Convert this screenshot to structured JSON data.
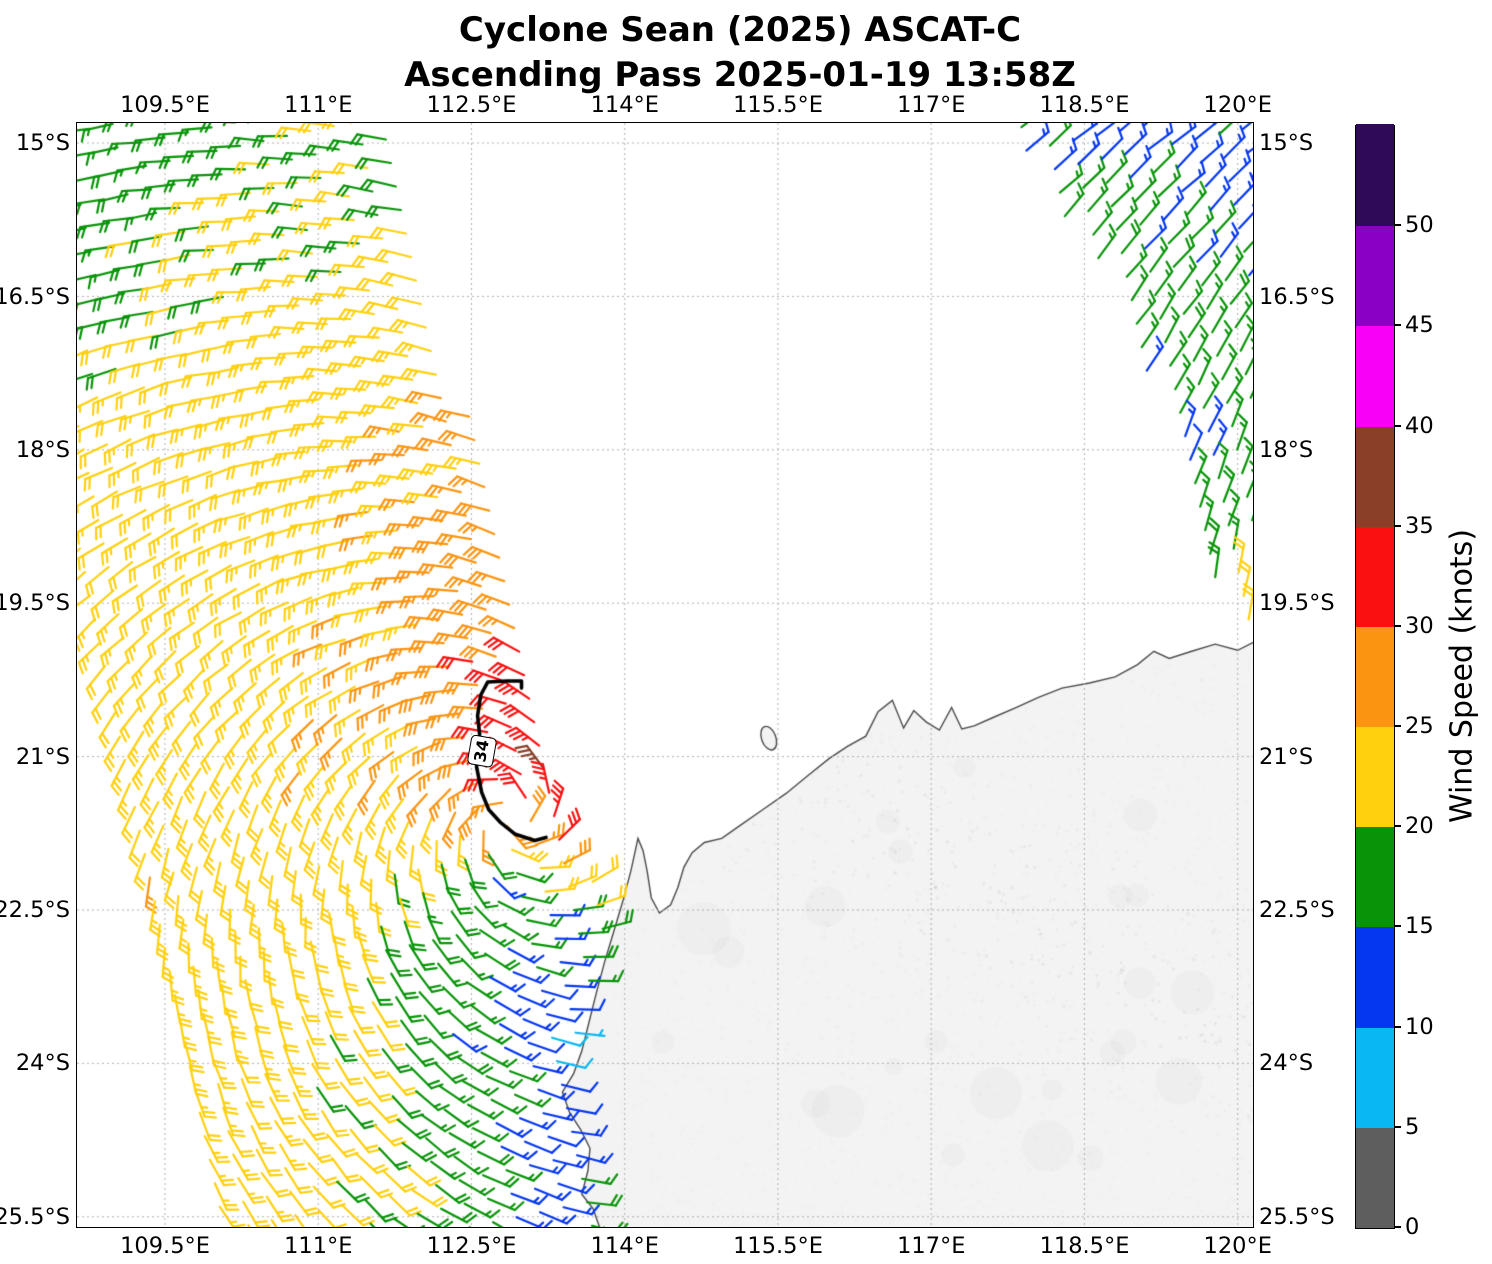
{
  "title": {
    "line1": "Cyclone Sean (2025) ASCAT-C",
    "line2": "Ascending Pass 2025-01-19 13:58Z"
  },
  "axes": {
    "lon_tick_labels": [
      "109.5°E",
      "111°E",
      "112.5°E",
      "114°E",
      "115.5°E",
      "117°E",
      "118.5°E",
      "120°E"
    ],
    "lon_tick_values": [
      109.5,
      111,
      112.5,
      114,
      115.5,
      117,
      118.5,
      120
    ],
    "lat_tick_labels": [
      "15°S",
      "16.5°S",
      "18°S",
      "19.5°S",
      "21°S",
      "22.5°S",
      "24°S",
      "25.5°S"
    ],
    "lat_tick_values": [
      15,
      16.5,
      18,
      19.5,
      21,
      22.5,
      24,
      25.5
    ],
    "lon_range": [
      108.639,
      120.15
    ],
    "lat_range": [
      14.804,
      25.6
    ]
  },
  "colorbar": {
    "label": "Wind Speed (knots)",
    "tick_values": [
      0,
      5,
      10,
      15,
      20,
      25,
      30,
      35,
      40,
      45,
      50
    ],
    "max_value": 55,
    "bin_size": 5,
    "segment_colors": [
      "#5e5e5e",
      "#0ab8f1",
      "#0537f0",
      "#089408",
      "#ffd00e",
      "#fb9511",
      "#fa1010",
      "#8a4028",
      "#f800f8",
      "#8a00c4",
      "#2e0a59"
    ]
  },
  "chart_data": {
    "type": "wind_barb_map",
    "title": "Cyclone Sean (2025) ASCAT-C — Ascending Pass 2025-01-19 13:58Z",
    "units": "knots",
    "speed_bin_edges": [
      0,
      5,
      10,
      15,
      20,
      25,
      30,
      35,
      40,
      45,
      50,
      55
    ],
    "speed_bin_colors": [
      "#5e5e5e",
      "#0ab8f1",
      "#0537f0",
      "#089408",
      "#ffd00e",
      "#fb9511",
      "#fa1010",
      "#8a4028",
      "#f800f8",
      "#8a00c4",
      "#2e0a59"
    ],
    "colorbar_label": "Wind Speed (knots)",
    "grid_spacing_deg": 0.235,
    "grid_tilt_deg": -12,
    "circulation_center_lonlat": [
      112.9,
      21.6
    ],
    "inflow_angle_deg": 22,
    "r34_contour": {
      "label": "34",
      "points_lonlat": [
        [
          112.99,
          20.33
        ],
        [
          112.99,
          20.26
        ],
        [
          112.85,
          20.26
        ],
        [
          112.66,
          20.27
        ],
        [
          112.59,
          20.4
        ],
        [
          112.56,
          20.6
        ],
        [
          112.58,
          20.78
        ],
        [
          112.55,
          21.1
        ],
        [
          112.6,
          21.35
        ],
        [
          112.67,
          21.52
        ],
        [
          112.78,
          21.64
        ],
        [
          112.93,
          21.76
        ],
        [
          113.12,
          21.82
        ],
        [
          113.23,
          21.79
        ]
      ],
      "label_pos_lonlat": [
        112.6,
        20.94
      ],
      "label_rotation_deg": -80
    },
    "swaths": {
      "west": {
        "east_edge_lon_at_15S": 111.78,
        "east_edge_slope_deg_per_deg": 0.265,
        "east_edge_max_lon": 114.05
      },
      "northeast": {
        "left_edge_lon_at_15S": 117.85,
        "slope_north": 0.62,
        "slope_south": 0.33,
        "slope_break_lat": 16.8,
        "south_limit_lat": 19.85
      }
    },
    "wind_speed_controls_lon_lat_kt": [
      [
        108.6,
        14.8,
        16
      ],
      [
        110.2,
        14.8,
        18
      ],
      [
        111.3,
        14.9,
        20
      ],
      [
        111.9,
        15.2,
        18.5
      ],
      [
        108.7,
        16.2,
        17.5
      ],
      [
        110.3,
        16.3,
        20.5
      ],
      [
        111.6,
        16.5,
        21.5
      ],
      [
        108.7,
        17.6,
        21.5
      ],
      [
        110.0,
        17.8,
        22
      ],
      [
        111.3,
        17.6,
        23
      ],
      [
        112.15,
        17.8,
        25.5
      ],
      [
        108.7,
        19.2,
        22.5
      ],
      [
        110.2,
        19.4,
        23
      ],
      [
        111.4,
        19.3,
        23.5
      ],
      [
        112.45,
        19.0,
        27
      ],
      [
        112.7,
        19.7,
        28.5
      ],
      [
        108.7,
        20.8,
        23.5
      ],
      [
        110.3,
        20.9,
        23.5
      ],
      [
        111.6,
        20.8,
        24
      ],
      [
        112.4,
        20.4,
        28.5
      ],
      [
        113.0,
        20.5,
        33.5
      ],
      [
        113.35,
        20.9,
        36.5
      ],
      [
        112.9,
        21.1,
        34
      ],
      [
        113.5,
        21.5,
        36
      ],
      [
        112.55,
        21.4,
        27
      ],
      [
        111.9,
        21.6,
        23.5
      ],
      [
        113.45,
        21.95,
        31
      ],
      [
        113.55,
        22.3,
        21
      ],
      [
        113.35,
        22.6,
        14
      ],
      [
        108.7,
        22.4,
        25
      ],
      [
        110.0,
        22.6,
        23.5
      ],
      [
        111.2,
        22.6,
        22
      ],
      [
        112.2,
        22.4,
        17
      ],
      [
        112.75,
        22.3,
        13.5
      ],
      [
        108.7,
        24.0,
        26
      ],
      [
        110.2,
        24.2,
        23.5
      ],
      [
        111.5,
        23.8,
        20
      ],
      [
        112.3,
        23.5,
        16.5
      ],
      [
        113.0,
        23.3,
        11.5
      ],
      [
        113.55,
        23.8,
        7.5
      ],
      [
        108.7,
        25.4,
        27
      ],
      [
        110.5,
        25.3,
        22.5
      ],
      [
        111.8,
        25.2,
        20.5
      ],
      [
        112.6,
        25.0,
        16
      ],
      [
        113.15,
        24.8,
        12
      ],
      [
        113.3,
        25.5,
        13.5
      ],
      [
        113.7,
        25.5,
        19
      ],
      [
        117.9,
        14.9,
        14.5
      ],
      [
        118.8,
        15.1,
        13.5
      ],
      [
        119.8,
        15.3,
        14
      ],
      [
        118.6,
        16.0,
        16.5
      ],
      [
        119.3,
        16.6,
        16.5
      ],
      [
        119.9,
        17.3,
        16
      ],
      [
        119.6,
        18.0,
        14
      ],
      [
        120.0,
        18.8,
        16.5
      ],
      [
        120.05,
        19.5,
        20.5
      ]
    ],
    "coastline_lonlat": [
      [
        120.32,
        19.8
      ],
      [
        120.0,
        19.96
      ],
      [
        119.78,
        19.9
      ],
      [
        119.55,
        19.97
      ],
      [
        119.33,
        20.04
      ],
      [
        119.18,
        19.97
      ],
      [
        119.02,
        20.1
      ],
      [
        118.8,
        20.22
      ],
      [
        118.55,
        20.28
      ],
      [
        118.28,
        20.33
      ],
      [
        118.05,
        20.42
      ],
      [
        117.83,
        20.52
      ],
      [
        117.6,
        20.62
      ],
      [
        117.42,
        20.7
      ],
      [
        117.3,
        20.73
      ],
      [
        117.2,
        20.52
      ],
      [
        117.08,
        20.74
      ],
      [
        116.95,
        20.66
      ],
      [
        116.83,
        20.55
      ],
      [
        116.73,
        20.72
      ],
      [
        116.62,
        20.45
      ],
      [
        116.48,
        20.56
      ],
      [
        116.36,
        20.8
      ],
      [
        116.18,
        20.9
      ],
      [
        116.0,
        21.02
      ],
      [
        115.8,
        21.18
      ],
      [
        115.58,
        21.36
      ],
      [
        115.35,
        21.52
      ],
      [
        115.12,
        21.68
      ],
      [
        114.95,
        21.8
      ],
      [
        114.78,
        21.84
      ],
      [
        114.66,
        21.94
      ],
      [
        114.58,
        22.08
      ],
      [
        114.52,
        22.28
      ],
      [
        114.45,
        22.45
      ],
      [
        114.34,
        22.53
      ],
      [
        114.26,
        22.38
      ],
      [
        114.22,
        22.12
      ],
      [
        114.18,
        21.92
      ],
      [
        114.13,
        21.8
      ],
      [
        114.06,
        22.12
      ],
      [
        113.98,
        22.42
      ],
      [
        113.89,
        22.72
      ],
      [
        113.8,
        23.02
      ],
      [
        113.72,
        23.32
      ],
      [
        113.65,
        23.6
      ],
      [
        113.58,
        23.88
      ],
      [
        113.5,
        24.1
      ],
      [
        113.39,
        24.28
      ],
      [
        113.46,
        24.48
      ],
      [
        113.57,
        24.65
      ],
      [
        113.66,
        24.83
      ],
      [
        113.64,
        25.05
      ],
      [
        113.58,
        25.28
      ],
      [
        113.69,
        25.42
      ],
      [
        113.76,
        25.62
      ],
      [
        120.32,
        25.62
      ]
    ],
    "island_lonlat": {
      "name": "island-outline",
      "center": [
        115.41,
        20.82
      ],
      "rx_deg": 0.07,
      "ry_deg": 0.12,
      "rotation_deg": -20
    },
    "land_color": "#f3f3f3",
    "coast_color": "#4a4a4a",
    "grid_color": "#b0b0b0"
  }
}
